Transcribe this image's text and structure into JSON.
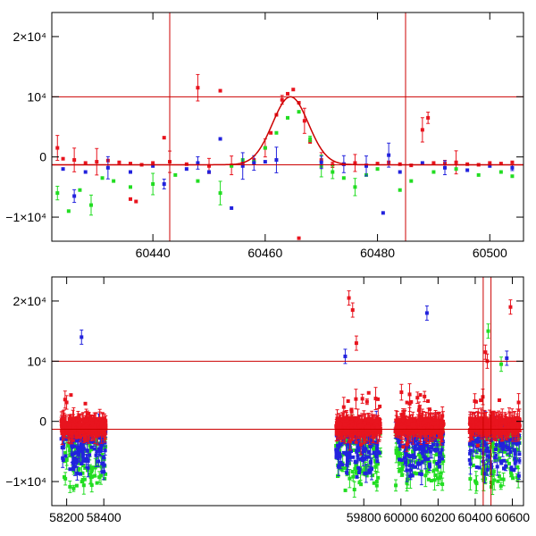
{
  "colors": {
    "red": "#e8141e",
    "green": "#22dd22",
    "blue": "#2222dd",
    "ref_line": "#cc0000",
    "frame": "#000000"
  },
  "chart_data": [
    {
      "type": "scatter",
      "panel": "top",
      "xlim": [
        60422,
        60506
      ],
      "ylim": [
        -14000,
        24000
      ],
      "xticks": [
        {
          "value": 60440,
          "label": "60440"
        },
        {
          "value": 60460,
          "label": "60460"
        },
        {
          "value": 60480,
          "label": "60480"
        },
        {
          "value": 60500,
          "label": "60500"
        }
      ],
      "yticks": [
        {
          "value": 20000,
          "label": "2×10⁴"
        },
        {
          "value": 10000,
          "label": "10⁴"
        },
        {
          "value": 0,
          "label": "0"
        },
        {
          "value": -10000,
          "label": "−1×10⁴"
        }
      ],
      "hlines": [
        10000,
        -1300
      ],
      "vlines": [
        60443,
        60485
      ],
      "model_curve": {
        "baseline": -1300,
        "peak": 10000,
        "center": 60464.5,
        "width": 3.2
      },
      "series": [
        {
          "color": "red",
          "points": [
            [
              60423,
              1500
            ],
            [
              60424,
              -300
            ],
            [
              60426,
              -500
            ],
            [
              60428,
              -1000
            ],
            [
              60430,
              -800
            ],
            [
              60432,
              -600
            ],
            [
              60434,
              -900
            ],
            [
              60436,
              -1100
            ],
            [
              60438,
              -1300
            ],
            [
              60440,
              -1000
            ],
            [
              60442,
              3200
            ],
            [
              60443,
              -800
            ],
            [
              60446,
              -1200
            ],
            [
              60448,
              11500
            ],
            [
              60450,
              -1500
            ],
            [
              60452,
              11000
            ],
            [
              60454,
              -1400
            ],
            [
              60456,
              -1100
            ],
            [
              60458,
              -500
            ],
            [
              60460,
              1500
            ],
            [
              60461,
              4000
            ],
            [
              60462,
              7000
            ],
            [
              60463,
              9500
            ],
            [
              60464,
              10500
            ],
            [
              60465,
              11200
            ],
            [
              60466,
              9000
            ],
            [
              60467,
              6000
            ],
            [
              60468,
              2500
            ],
            [
              60470,
              -500
            ],
            [
              60472,
              -1300
            ],
            [
              60474,
              -1200
            ],
            [
              60476,
              -1000
            ],
            [
              60478,
              -1400
            ],
            [
              60480,
              -1100
            ],
            [
              60482,
              -900
            ],
            [
              60484,
              -1200
            ],
            [
              60486,
              -1400
            ],
            [
              60488,
              4500
            ],
            [
              60489,
              6500
            ],
            [
              60490,
              -1000
            ],
            [
              60492,
              -1100
            ],
            [
              60494,
              -900
            ],
            [
              60496,
              -1200
            ],
            [
              60498,
              -1300
            ],
            [
              60500,
              -1000
            ],
            [
              60502,
              -1100
            ],
            [
              60504,
              -900
            ],
            [
              60466,
              -13500
            ],
            [
              60436,
              -7000
            ],
            [
              60437,
              -7400
            ]
          ]
        },
        {
          "color": "green",
          "points": [
            [
              60423,
              -6000
            ],
            [
              60425,
              -9000
            ],
            [
              60427,
              -5500
            ],
            [
              60429,
              -8000
            ],
            [
              60431,
              -3500
            ],
            [
              60433,
              -4000
            ],
            [
              60436,
              -5000
            ],
            [
              60440,
              -4500
            ],
            [
              60444,
              -3000
            ],
            [
              60448,
              -4000
            ],
            [
              60452,
              -6000
            ],
            [
              60454,
              -1500
            ],
            [
              60456,
              -500
            ],
            [
              60458,
              -800
            ],
            [
              60460,
              1500
            ],
            [
              60462,
              4000
            ],
            [
              60464,
              6500
            ],
            [
              60466,
              7500
            ],
            [
              60468,
              3000
            ],
            [
              60470,
              -1500
            ],
            [
              60472,
              -2500
            ],
            [
              60474,
              -3500
            ],
            [
              60476,
              -5000
            ],
            [
              60478,
              -3000
            ],
            [
              60480,
              -2000
            ],
            [
              60484,
              -5500
            ],
            [
              60486,
              -4000
            ],
            [
              60490,
              -2500
            ],
            [
              60494,
              -2000
            ],
            [
              60498,
              -3000
            ],
            [
              60502,
              -2500
            ],
            [
              60504,
              -3200
            ]
          ]
        },
        {
          "color": "blue",
          "points": [
            [
              60424,
              -2000
            ],
            [
              60426,
              -6500
            ],
            [
              60428,
              -2500
            ],
            [
              60432,
              -1800
            ],
            [
              60436,
              -2500
            ],
            [
              60440,
              -1500
            ],
            [
              60442,
              -4500
            ],
            [
              60446,
              -2000
            ],
            [
              60448,
              -1000
            ],
            [
              60450,
              -2500
            ],
            [
              60452,
              3000
            ],
            [
              60454,
              -8500
            ],
            [
              60456,
              -1500
            ],
            [
              60458,
              -1000
            ],
            [
              60460,
              -800
            ],
            [
              60462,
              -500
            ],
            [
              60470,
              -900
            ],
            [
              60474,
              -1200
            ],
            [
              60478,
              -1500
            ],
            [
              60481,
              -9300
            ],
            [
              60482,
              300
            ],
            [
              60484,
              -2500
            ],
            [
              60488,
              -1000
            ],
            [
              60492,
              -1800
            ],
            [
              60496,
              -2200
            ],
            [
              60500,
              -1500
            ],
            [
              60504,
              -1800
            ]
          ]
        }
      ]
    },
    {
      "type": "scatter",
      "panel": "bottom",
      "xlim": [
        58120,
        60660
      ],
      "xticks": [
        {
          "value": 58200,
          "label": "58200"
        },
        {
          "value": 58400,
          "label": "58400"
        },
        {
          "value": 59800,
          "label": "59800"
        },
        {
          "value": 60000,
          "label": "60000"
        },
        {
          "value": 60200,
          "label": "60200"
        },
        {
          "value": 60400,
          "label": "60400"
        },
        {
          "value": 60600,
          "label": "60600"
        }
      ],
      "ylim": [
        -14000,
        24000
      ],
      "yticks": [
        {
          "value": 20000,
          "label": "2×10⁴"
        },
        {
          "value": 10000,
          "label": "10⁴"
        },
        {
          "value": 0,
          "label": "0"
        },
        {
          "value": -10000,
          "label": "−1×10⁴"
        }
      ],
      "hlines": [
        10000,
        -1300
      ],
      "vlines": [
        60443,
        60485
      ],
      "clusters": [
        {
          "x_start": 58170,
          "x_end": 58410,
          "seed": 11
        },
        {
          "x_start": 59650,
          "x_end": 59890,
          "seed": 23
        },
        {
          "x_start": 59970,
          "x_end": 60230,
          "seed": 37
        },
        {
          "x_start": 60370,
          "x_end": 60640,
          "seed": 51
        }
      ],
      "outliers": [
        {
          "color": "blue",
          "x": 58280,
          "y": 14000
        },
        {
          "color": "red",
          "x": 59720,
          "y": 20500
        },
        {
          "color": "red",
          "x": 59740,
          "y": 18500
        },
        {
          "color": "red",
          "x": 59760,
          "y": 13000
        },
        {
          "color": "blue",
          "x": 59700,
          "y": 10800
        },
        {
          "color": "blue",
          "x": 60140,
          "y": 18000
        },
        {
          "color": "green",
          "x": 60470,
          "y": 15000
        },
        {
          "color": "red",
          "x": 60590,
          "y": 19000
        },
        {
          "color": "blue",
          "x": 60570,
          "y": 10500
        },
        {
          "color": "green",
          "x": 60540,
          "y": 9500
        },
        {
          "color": "red",
          "x": 60455,
          "y": 11500
        },
        {
          "color": "red",
          "x": 60465,
          "y": 10000
        }
      ]
    }
  ]
}
